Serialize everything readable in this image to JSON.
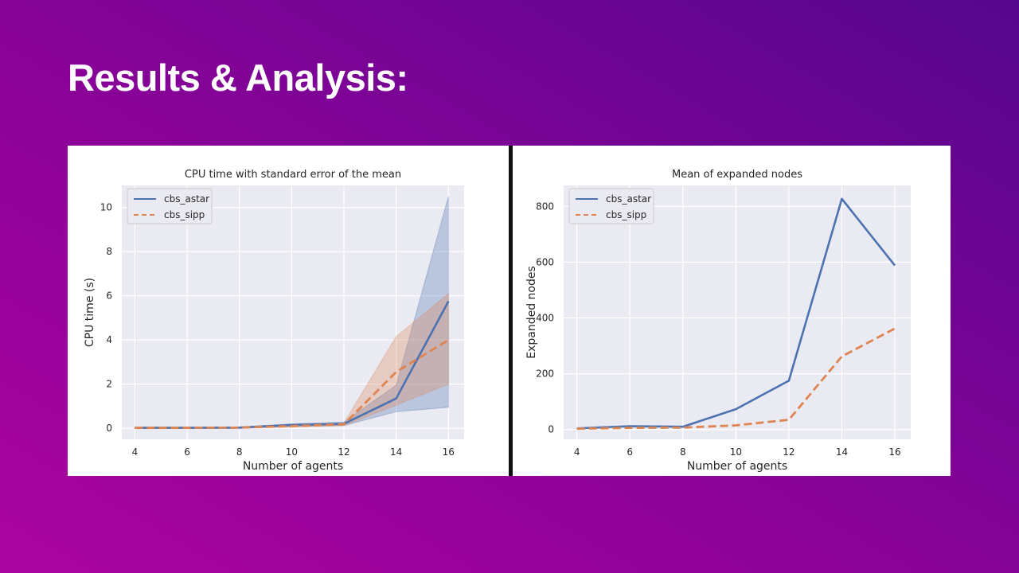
{
  "slide": {
    "title": "Results & Analysis:"
  },
  "colors": {
    "astar": "#4c72b0",
    "sipp": "#dd8452",
    "plot_bg": "#eaeaf2",
    "grid": "#ffffff"
  },
  "chart_data": [
    {
      "type": "line",
      "title": "CPU time with standard error of the mean",
      "xlabel": "Number of agents",
      "ylabel": "CPU time (s)",
      "x": [
        4,
        6,
        8,
        10,
        12,
        14,
        16
      ],
      "xticks": [
        4,
        6,
        8,
        10,
        12,
        14,
        16
      ],
      "yticks": [
        0,
        2,
        4,
        6,
        8,
        10
      ],
      "xlim": [
        3.5,
        16.6
      ],
      "ylim": [
        -0.5,
        11
      ],
      "grid": true,
      "legend_position": "upper-left",
      "series": [
        {
          "name": "cbs_astar",
          "style": "solid",
          "color": "#4c72b0",
          "values": [
            0.02,
            0.02,
            0.03,
            0.15,
            0.2,
            1.35,
            5.75
          ],
          "band_lower": [
            0.0,
            0.0,
            0.0,
            0.08,
            0.12,
            0.75,
            0.95
          ],
          "band_upper": [
            0.05,
            0.05,
            0.06,
            0.2,
            0.28,
            1.95,
            10.5
          ]
        },
        {
          "name": "cbs_sipp",
          "style": "dashed",
          "color": "#dd8452",
          "values": [
            0.02,
            0.02,
            0.03,
            0.1,
            0.18,
            2.55,
            4.0
          ],
          "band_lower": [
            0.0,
            0.0,
            0.0,
            0.05,
            0.12,
            1.05,
            2.0
          ],
          "band_upper": [
            0.05,
            0.05,
            0.06,
            0.15,
            0.24,
            4.15,
            6.1
          ]
        }
      ]
    },
    {
      "type": "line",
      "title": "Mean of expanded nodes",
      "xlabel": "Number of agents",
      "ylabel": "Expanded nodes",
      "x": [
        4,
        6,
        8,
        10,
        12,
        14,
        16
      ],
      "xticks": [
        4,
        6,
        8,
        10,
        12,
        14,
        16
      ],
      "yticks": [
        0,
        200,
        400,
        600,
        800
      ],
      "xlim": [
        3.5,
        16.6
      ],
      "ylim": [
        -35,
        875
      ],
      "grid": true,
      "legend_position": "upper-left",
      "series": [
        {
          "name": "cbs_astar",
          "style": "solid",
          "color": "#4c72b0",
          "values": [
            4,
            12,
            10,
            73,
            175,
            827,
            588
          ]
        },
        {
          "name": "cbs_sipp",
          "style": "dashed",
          "color": "#dd8452",
          "values": [
            3,
            6,
            7,
            15,
            35,
            262,
            362
          ]
        }
      ]
    }
  ]
}
